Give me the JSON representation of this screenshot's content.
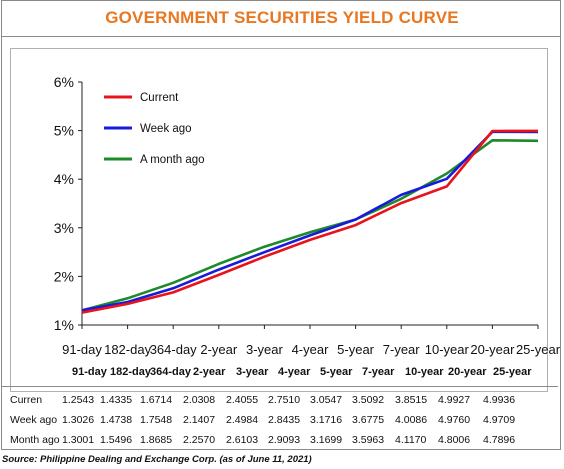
{
  "title": "GOVERNMENT SECURITIES YIELD CURVE",
  "source": "Source: Philippine Dealing and Exchange Corp. (as of June 11, 2021)",
  "chart_data": {
    "type": "line",
    "title": "GOVERNMENT SECURITIES YIELD CURVE",
    "categories": [
      "91-day",
      "182-day",
      "364-day",
      "2-year",
      "3-year",
      "4-year",
      "5-year",
      "7-year",
      "10-year",
      "20-year",
      "25-year"
    ],
    "y_ticks": [
      "1%",
      "2%",
      "3%",
      "4%",
      "5%",
      "6%"
    ],
    "ylim": [
      1,
      6
    ],
    "grid": false,
    "legend_position": "top-left",
    "series": [
      {
        "name": "Current",
        "color": "#e8141b",
        "values": [
          1.2543,
          1.4335,
          1.6714,
          2.0308,
          2.4055,
          2.751,
          3.0547,
          3.5092,
          3.8515,
          4.9927,
          4.9936
        ]
      },
      {
        "name": "Week ago",
        "color": "#1a1adb",
        "values": [
          1.3026,
          1.4738,
          1.7548,
          2.1407,
          2.4984,
          2.8435,
          3.1716,
          3.6775,
          4.0086,
          4.976,
          4.9709
        ]
      },
      {
        "name": "A month ago",
        "color": "#1e8a2a",
        "values": [
          1.3001,
          1.5496,
          1.8685,
          2.257,
          2.6103,
          2.9093,
          3.1699,
          3.5963,
          4.117,
          4.8006,
          4.7896
        ]
      }
    ]
  },
  "table": {
    "headers": [
      "91-day",
      "182-day",
      "364-day",
      "2-year",
      "3-year",
      "4-year",
      "5-year",
      "7-year",
      "10-year",
      "20-year",
      "25-year"
    ],
    "rows": [
      {
        "label": "Curren",
        "values": [
          "1.2543",
          "1.4335",
          "1.6714",
          "2.0308",
          "2.4055",
          "2.7510",
          "3.0547",
          "3.5092",
          "3.8515",
          "4.9927",
          "4.9936"
        ]
      },
      {
        "label": "Week ago",
        "values": [
          "1.3026",
          "1.4738",
          "1.7548",
          "2.1407",
          "2.4984",
          "2.8435",
          "3.1716",
          "3.6775",
          "4.0086",
          "4.9760",
          "4.9709"
        ]
      },
      {
        "label": "Month ago",
        "values": [
          "1.3001",
          "1.5496",
          "1.8685",
          "2.2570",
          "2.6103",
          "2.9093",
          "3.1699",
          "3.5963",
          "4.1170",
          "4.8006",
          "4.7896"
        ]
      }
    ]
  }
}
